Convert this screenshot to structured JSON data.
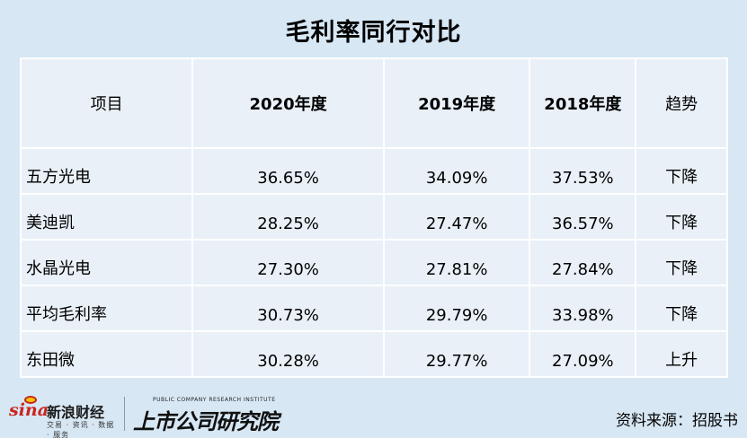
{
  "title": "毛利率同行对比",
  "table": {
    "headers": [
      "项目",
      "2020年度",
      "2019年度",
      "2018年度",
      "趋势"
    ],
    "rows": [
      [
        "五方光电",
        "36.65%",
        "34.09%",
        "37.53%",
        "下降"
      ],
      [
        "美迪凯",
        "28.25%",
        "27.47%",
        "36.57%",
        "下降"
      ],
      [
        "水晶光电",
        "27.30%",
        "27.81%",
        "27.84%",
        "下降"
      ],
      [
        "平均毛利率",
        "30.73%",
        "29.79%",
        "33.98%",
        "下降"
      ],
      [
        "东田微",
        "30.28%",
        "29.77%",
        "27.09%",
        "上升"
      ]
    ]
  },
  "footer": {
    "sina_mark": "sina",
    "sina_brand": "新浪财经",
    "sina_sub": "交易 · 资讯 · 数据 · 服务",
    "institute_en": "PUBLIC COMPANY RESEARCH INSTITUTE",
    "institute_cn": "上市公司研究院",
    "source": "资料来源：招股书"
  }
}
